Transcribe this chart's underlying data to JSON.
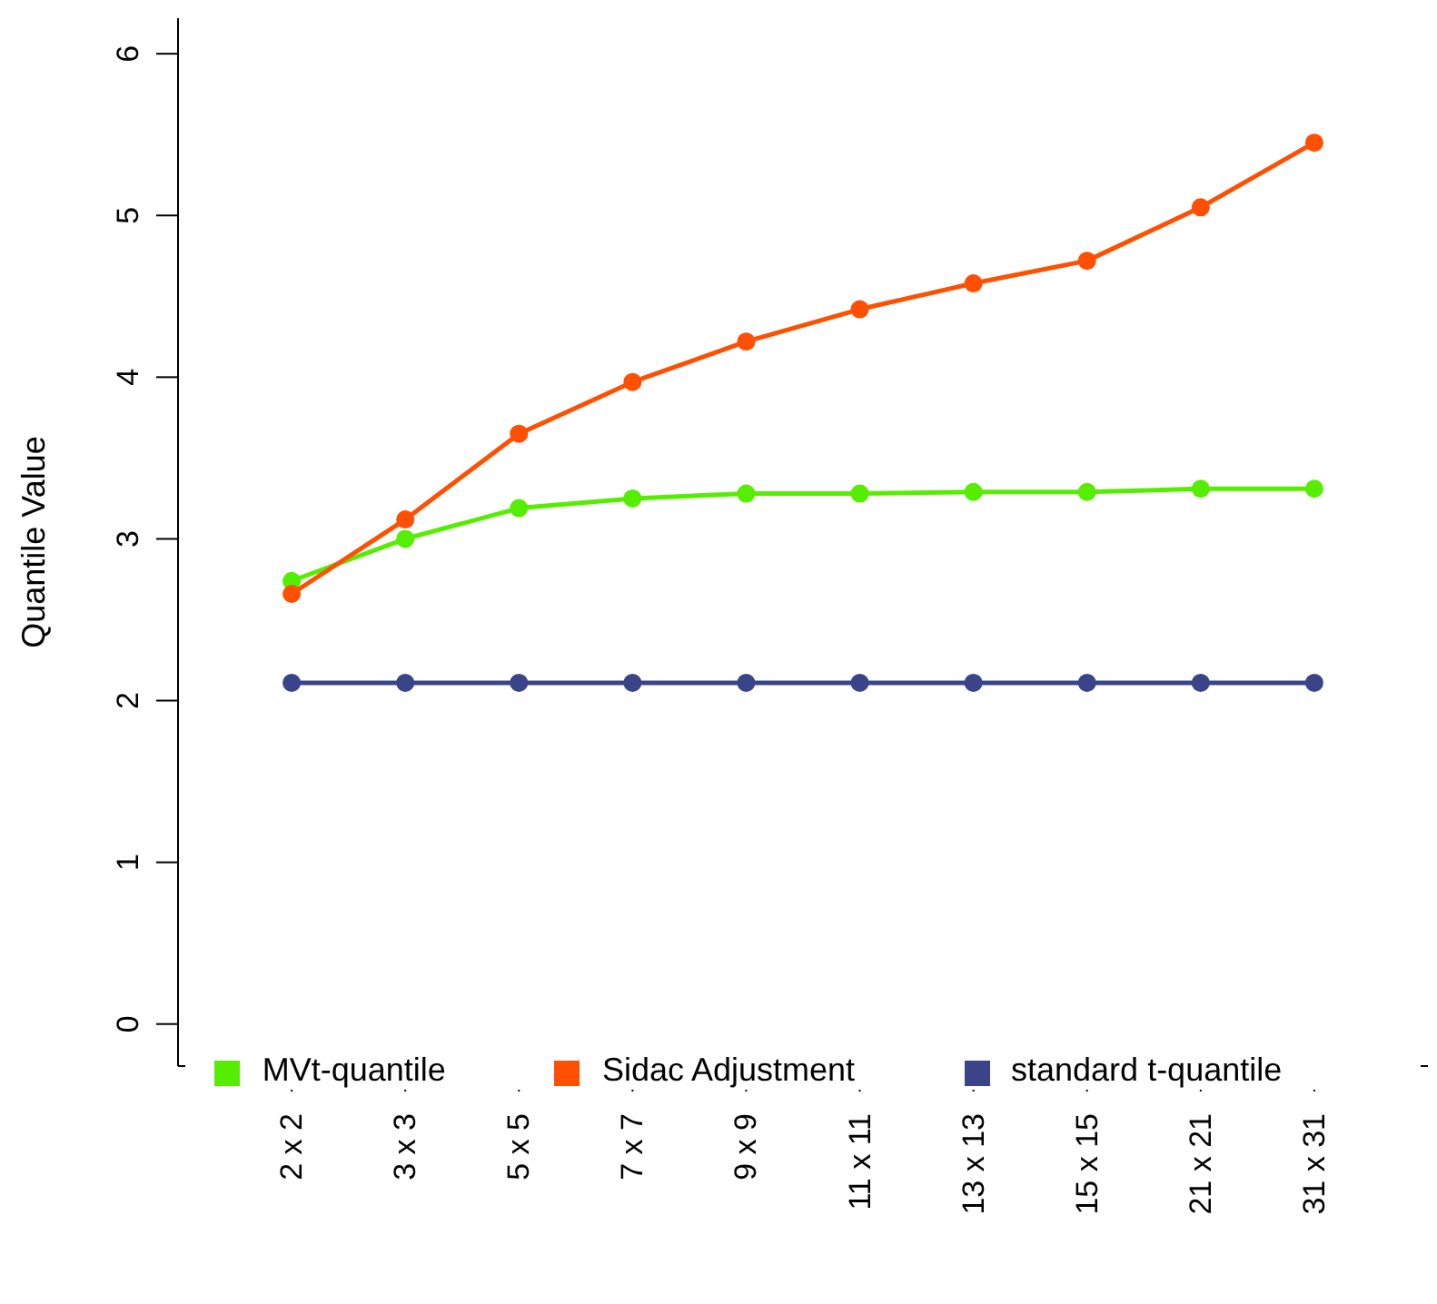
{
  "chart_data": {
    "type": "line",
    "ylabel": "Quantile Value",
    "categories": [
      "2 x 2",
      "3 x 3",
      "5 x 5",
      "7 x 7",
      "9 x 9",
      "11 x 11",
      "13 x 13",
      "15 x 15",
      "21 x 21",
      "31 x 31"
    ],
    "ylim": [
      -0.26,
      6.22
    ],
    "yticks": [
      0,
      1,
      2,
      3,
      4,
      5,
      6
    ],
    "series": [
      {
        "name": "MVt-quantile",
        "color": "#55ee00",
        "values": [
          2.74,
          3.0,
          3.19,
          3.25,
          3.28,
          3.28,
          3.29,
          3.29,
          3.31,
          3.31
        ]
      },
      {
        "name": "standard t-quantile",
        "color": "#3a4488",
        "values": [
          2.11,
          2.11,
          2.11,
          2.11,
          2.11,
          2.11,
          2.11,
          2.11,
          2.11,
          2.11
        ]
      },
      {
        "name": "Sidac Adjustment",
        "color": "#ff4f00",
        "values": [
          2.66,
          3.12,
          3.65,
          3.97,
          4.22,
          4.42,
          4.58,
          4.72,
          5.05,
          5.45
        ]
      }
    ],
    "legend": "bottom",
    "marker": "circle",
    "line_style": "solid",
    "grid": false
  }
}
